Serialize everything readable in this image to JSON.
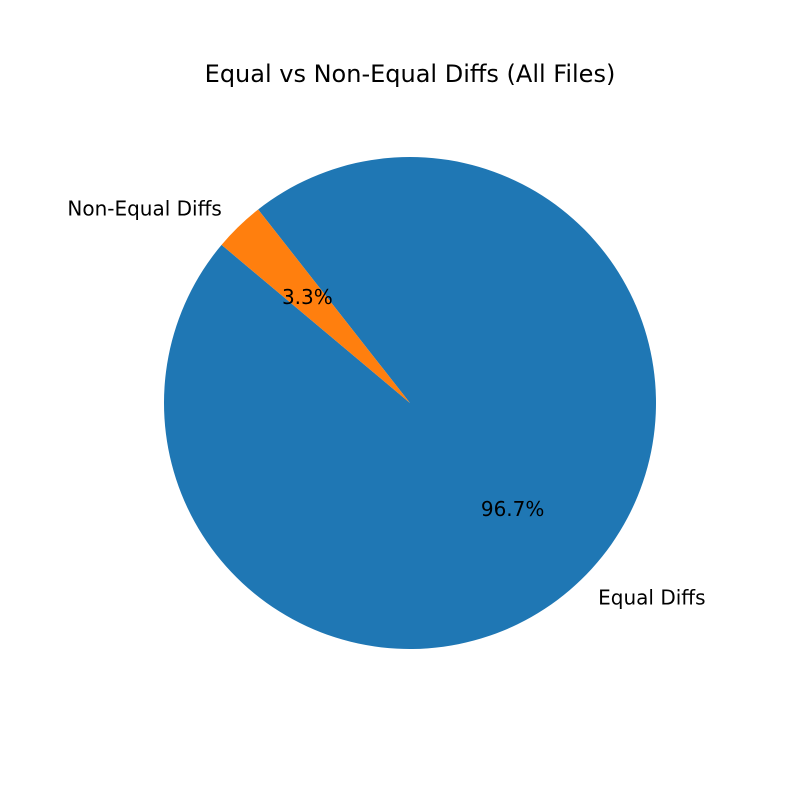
{
  "chart_data": {
    "type": "pie",
    "title": "Equal vs Non-Equal Diffs (All Files)",
    "slices": [
      {
        "label": "Equal Diffs",
        "percent": 96.7,
        "percent_label": "96.7%",
        "color": "#1f77b4"
      },
      {
        "label": "Non-Equal Diffs",
        "percent": 3.3,
        "percent_label": "3.3%",
        "color": "#ff7f0e"
      }
    ],
    "start_angle_deg": 140,
    "direction": "counterclockwise",
    "legend": "none"
  }
}
